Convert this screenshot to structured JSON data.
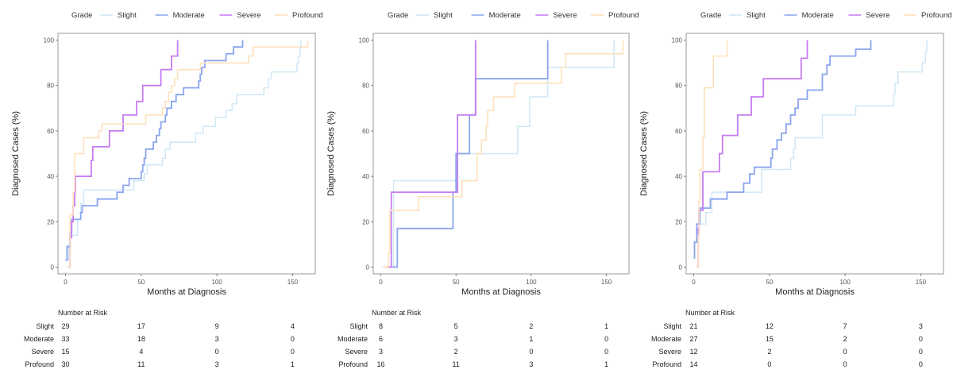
{
  "chart_data": [
    {
      "type": "line",
      "legend_title": "Grade",
      "legend_position": "top",
      "xlabel": "Months at Diagnosis",
      "ylabel": "Diagnosed Cases (%)",
      "xlim": [
        -5,
        165
      ],
      "ylim": [
        -3,
        103
      ],
      "xticks": [
        0,
        50,
        100,
        150
      ],
      "yticks": [
        0,
        20,
        40,
        60,
        80,
        100
      ],
      "series": [
        {
          "name": "Slight",
          "color": "#cfe8f6",
          "steps": [
            [
              0,
              3
            ],
            [
              2,
              10
            ],
            [
              3,
              14
            ],
            [
              8,
              21
            ],
            [
              10,
              28
            ],
            [
              12,
              34
            ],
            [
              45,
              38
            ],
            [
              52,
              41
            ],
            [
              54,
              45
            ],
            [
              64,
              48
            ],
            [
              66,
              52
            ],
            [
              69,
              55
            ],
            [
              86,
              59
            ],
            [
              91,
              62
            ],
            [
              99,
              66
            ],
            [
              106,
              69
            ],
            [
              110,
              72
            ],
            [
              113,
              76
            ],
            [
              131,
              79
            ],
            [
              134,
              83
            ],
            [
              136,
              86
            ],
            [
              153,
              90
            ],
            [
              154,
              93
            ],
            [
              155,
              97
            ],
            [
              155.5,
              100
            ]
          ]
        },
        {
          "name": "Moderate",
          "color": "#8aa4f0",
          "steps": [
            [
              0,
              3
            ],
            [
              1,
              9
            ],
            [
              3,
              15
            ],
            [
              4,
              21
            ],
            [
              10,
              24
            ],
            [
              11,
              27
            ],
            [
              21,
              30
            ],
            [
              34,
              33
            ],
            [
              38,
              36
            ],
            [
              42,
              39
            ],
            [
              50,
              42
            ],
            [
              51,
              45
            ],
            [
              52,
              48
            ],
            [
              53,
              52
            ],
            [
              58,
              55
            ],
            [
              60,
              58
            ],
            [
              62,
              61
            ],
            [
              63,
              64
            ],
            [
              66,
              67
            ],
            [
              67,
              70
            ],
            [
              70,
              73
            ],
            [
              73,
              76
            ],
            [
              78,
              79
            ],
            [
              88,
              82
            ],
            [
              89,
              85
            ],
            [
              90,
              88
            ],
            [
              92,
              91
            ],
            [
              106,
              94
            ],
            [
              111,
              97
            ],
            [
              117,
              100
            ]
          ]
        },
        {
          "name": "Severe",
          "color": "#c57cf2",
          "steps": [
            [
              2,
              0
            ],
            [
              3,
              13
            ],
            [
              4,
              20
            ],
            [
              5,
              27
            ],
            [
              6,
              33
            ],
            [
              6.5,
              40
            ],
            [
              16,
              40
            ],
            [
              17,
              47
            ],
            [
              18,
              53
            ],
            [
              28,
              53
            ],
            [
              29,
              60
            ],
            [
              38,
              67
            ],
            [
              47,
              73
            ],
            [
              51,
              80
            ],
            [
              63,
              87
            ],
            [
              70,
              93
            ],
            [
              74,
              100
            ]
          ]
        },
        {
          "name": "Profound",
          "color": "#fde0b8",
          "steps": [
            [
              1,
              0
            ],
            [
              3,
              23
            ],
            [
              5,
              33
            ],
            [
              6,
              50
            ],
            [
              12,
              57
            ],
            [
              22,
              60
            ],
            [
              24,
              63
            ],
            [
              53,
              67
            ],
            [
              64,
              70
            ],
            [
              66,
              73
            ],
            [
              68,
              77
            ],
            [
              70,
              80
            ],
            [
              72,
              83
            ],
            [
              74,
              87
            ],
            [
              89,
              90
            ],
            [
              121,
              93
            ],
            [
              124,
              97
            ],
            [
              160,
              100
            ]
          ]
        }
      ],
      "risk_table": {
        "title": "Number at Risk",
        "times": [
          0,
          50,
          100,
          150
        ],
        "rows": [
          {
            "label": "Slight",
            "values": [
              "29",
              "17",
              "9",
              "4"
            ]
          },
          {
            "label": "Moderate",
            "values": [
              "33",
              "18",
              "3",
              "0"
            ]
          },
          {
            "label": "Severe",
            "values": [
              "15",
              "4",
              "0",
              "0"
            ]
          },
          {
            "label": "Profound",
            "values": [
              "30",
              "11",
              "3",
              "1"
            ]
          }
        ]
      }
    },
    {
      "type": "line",
      "legend_title": "Grade",
      "legend_position": "top",
      "xlabel": "Months at Diagnosis",
      "ylabel": "Diagnosed Cases (%)",
      "xlim": [
        -5,
        165
      ],
      "ylim": [
        -3,
        103
      ],
      "xticks": [
        0,
        50,
        100,
        150
      ],
      "yticks": [
        0,
        20,
        40,
        60,
        80,
        100
      ],
      "series": [
        {
          "name": "Slight",
          "color": "#cfe8f6",
          "steps": [
            [
              8,
              0
            ],
            [
              8.5,
              38
            ],
            [
              51,
              50
            ],
            [
              91,
              62
            ],
            [
              99,
              75
            ],
            [
              111,
              88
            ],
            [
              155,
              100
            ]
          ]
        },
        {
          "name": "Moderate",
          "color": "#8aa4f0",
          "steps": [
            [
              4,
              0
            ],
            [
              11,
              17
            ],
            [
              48,
              33
            ],
            [
              50,
              50
            ],
            [
              59,
              67
            ],
            [
              63,
              83
            ],
            [
              111,
              100
            ]
          ]
        },
        {
          "name": "Severe",
          "color": "#c57cf2",
          "steps": [
            [
              3,
              0
            ],
            [
              7,
              33
            ],
            [
              51,
              67
            ],
            [
              63,
              100
            ]
          ]
        },
        {
          "name": "Profound",
          "color": "#fde0b8",
          "steps": [
            [
              1,
              0
            ],
            [
              5,
              6
            ],
            [
              6,
              25
            ],
            [
              25,
              31
            ],
            [
              54,
              38
            ],
            [
              64,
              50
            ],
            [
              67,
              56
            ],
            [
              70,
              62
            ],
            [
              71,
              69
            ],
            [
              75,
              75
            ],
            [
              89,
              81
            ],
            [
              120,
              88
            ],
            [
              123,
              94
            ],
            [
              161,
              100
            ]
          ]
        }
      ],
      "risk_table": {
        "title": "Number at Risk",
        "times": [
          0,
          50,
          100,
          150
        ],
        "rows": [
          {
            "label": "Slight",
            "values": [
              "8",
              "5",
              "2",
              "1"
            ]
          },
          {
            "label": "Moderate",
            "values": [
              "6",
              "3",
              "1",
              "0"
            ]
          },
          {
            "label": "Severe",
            "values": [
              "3",
              "2",
              "0",
              "0"
            ]
          },
          {
            "label": "Profound",
            "values": [
              "16",
              "11",
              "3",
              "1"
            ]
          }
        ]
      }
    },
    {
      "type": "line",
      "legend_title": "Grade",
      "legend_position": "top",
      "xlabel": "Months at Diagnosis",
      "ylabel": "Diagnosed Cases (%)",
      "xlim": [
        -5,
        165
      ],
      "ylim": [
        -3,
        103
      ],
      "xticks": [
        0,
        50,
        100,
        150
      ],
      "yticks": [
        0,
        20,
        40,
        60,
        80,
        100
      ],
      "series": [
        {
          "name": "Slight",
          "color": "#cfe8f6",
          "steps": [
            [
              2,
              0
            ],
            [
              3,
              14
            ],
            [
              3.5,
              19
            ],
            [
              8,
              24
            ],
            [
              12,
              33
            ],
            [
              45,
              43
            ],
            [
              64,
              48
            ],
            [
              66,
              52
            ],
            [
              67,
              57
            ],
            [
              85,
              67
            ],
            [
              107,
              71
            ],
            [
              132,
              76
            ],
            [
              133,
              81
            ],
            [
              135,
              86
            ],
            [
              151,
              90
            ],
            [
              153,
              95
            ],
            [
              154,
              100
            ]
          ]
        },
        {
          "name": "Moderate",
          "color": "#8aa4f0",
          "steps": [
            [
              0,
              4
            ],
            [
              0.5,
              11
            ],
            [
              2,
              19
            ],
            [
              4,
              26
            ],
            [
              11,
              30
            ],
            [
              22,
              33
            ],
            [
              33,
              37
            ],
            [
              37,
              41
            ],
            [
              40,
              44
            ],
            [
              51,
              48
            ],
            [
              52,
              52
            ],
            [
              55,
              56
            ],
            [
              58,
              59
            ],
            [
              61,
              63
            ],
            [
              64,
              67
            ],
            [
              67,
              70
            ],
            [
              69,
              74
            ],
            [
              75,
              78
            ],
            [
              85,
              85
            ],
            [
              88,
              89
            ],
            [
              90,
              93
            ],
            [
              107,
              96
            ],
            [
              117,
              100
            ]
          ]
        },
        {
          "name": "Severe",
          "color": "#c57cf2",
          "steps": [
            [
              2,
              0
            ],
            [
              3,
              17
            ],
            [
              3.5,
              25
            ],
            [
              6,
              42
            ],
            [
              17,
              50
            ],
            [
              19,
              58
            ],
            [
              29,
              67
            ],
            [
              38,
              75
            ],
            [
              46,
              83
            ],
            [
              71,
              92
            ],
            [
              75,
              100
            ]
          ]
        },
        {
          "name": "Profound",
          "color": "#fde0b8",
          "steps": [
            [
              2,
              0
            ],
            [
              3,
              14
            ],
            [
              3.5,
              29
            ],
            [
              4,
              43
            ],
            [
              6,
              57
            ],
            [
              7,
              79
            ],
            [
              13,
              93
            ],
            [
              22,
              100
            ]
          ]
        }
      ],
      "risk_table": {
        "title": "Number at Risk",
        "times": [
          0,
          50,
          100,
          150
        ],
        "rows": [
          {
            "label": "Slight",
            "values": [
              "21",
              "12",
              "7",
              "3"
            ]
          },
          {
            "label": "Moderate",
            "values": [
              "27",
              "15",
              "2",
              "0"
            ]
          },
          {
            "label": "Severe",
            "values": [
              "12",
              "2",
              "0",
              "0"
            ]
          },
          {
            "label": "Profound",
            "values": [
              "14",
              "0",
              "0",
              "0"
            ]
          }
        ]
      }
    }
  ]
}
